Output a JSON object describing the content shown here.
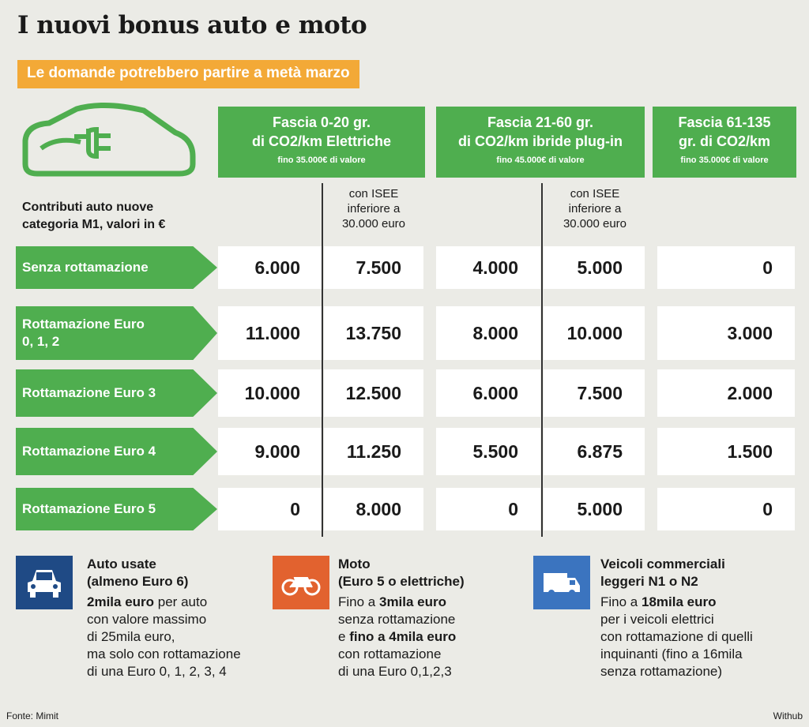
{
  "title": "I nuovi bonus auto e moto",
  "subtitle": "Le domande potrebbero partire a metà marzo",
  "colors": {
    "green": "#4fae4f",
    "orange": "#f3a937",
    "navy": "#1f4a85",
    "moto": "#e2622f",
    "blue": "#3b74bf"
  },
  "headers": [
    {
      "l1": "Fascia 0-20 gr.",
      "l2": "di CO2/km Elettriche",
      "s": "fino 35.000€ di valore"
    },
    {
      "l1": "Fascia 21-60 gr.",
      "l2": "di CO2/km ibride plug-in",
      "s": "fino 45.000€ di valore"
    },
    {
      "l1": "Fascia 61-135",
      "l2": "gr. di CO2/km",
      "s": "fino 35.000€ di valore"
    }
  ],
  "isee": {
    "l1": "con ISEE",
    "l2": "inferiore a",
    "l3": "30.000 euro"
  },
  "contrib": {
    "l1": "Contributi auto nuove",
    "l2": "categoria M1, valori in €"
  },
  "rows": [
    {
      "label": "Senza rottamazione",
      "v": [
        "6.000",
        "7.500",
        "4.000",
        "5.000",
        "0"
      ]
    },
    {
      "label": "Rottamazione Euro 0, 1, 2",
      "v": [
        "11.000",
        "13.750",
        "8.000",
        "10.000",
        "3.000"
      ]
    },
    {
      "label": "Rottamazione Euro 3",
      "v": [
        "10.000",
        "12.500",
        "6.000",
        "7.500",
        "2.000"
      ]
    },
    {
      "label": "Rottamazione Euro 4",
      "v": [
        "9.000",
        "11.250",
        "5.500",
        "6.875",
        "1.500"
      ]
    },
    {
      "label": "Rottamazione Euro 5",
      "v": [
        "0",
        "8.000",
        "0",
        "5.000",
        "0"
      ]
    }
  ],
  "bottom": {
    "auto": {
      "h1": "Auto usate",
      "h2": "(almeno Euro 6)",
      "b1": "2mila euro",
      "t1": " per auto",
      "t2": "con valore massimo",
      "t3": "di 25mila euro,",
      "t4": "ma solo con rottamazione",
      "t5": "di una Euro 0, 1, 2, 3, 4"
    },
    "moto": {
      "h1": "Moto",
      "h2": "(Euro 5 o elettriche)",
      "t1": "Fino a ",
      "b1": "3mila euro",
      "t2": "senza rottamazione",
      "t3": "e ",
      "b2": "fino a 4mila euro",
      "t4": "con rottamazione",
      "t5": "di una Euro 0,1,2,3"
    },
    "van": {
      "h1": "Veicoli commerciali",
      "h2": "leggeri N1 o N2",
      "t1": "Fino a ",
      "b1": "18mila euro",
      "t2": "per i veicoli elettrici",
      "t3": "con rottamazione di quelli",
      "t4": "inquinanti (fino a 16mila",
      "t5": "senza rottamazione)"
    }
  },
  "source": "Fonte: Mimit",
  "credit": "Withub"
}
